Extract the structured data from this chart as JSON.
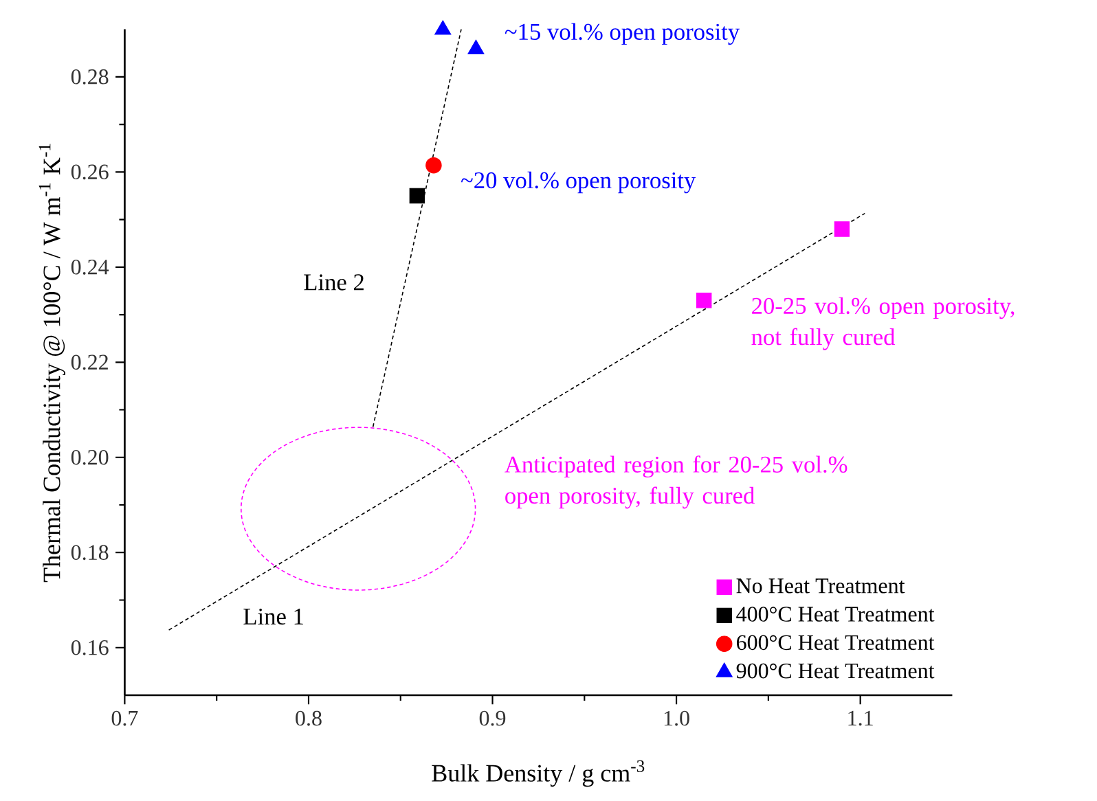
{
  "chart_data": {
    "type": "scatter",
    "xlabel": "Bulk Density / g cm$^{-3}$",
    "ylabel": "Thermal Conductivity @ 100°C / W m$^{-1}$ K$^{-1}$",
    "xlim": [
      0.7,
      1.15
    ],
    "ylim": [
      0.15,
      0.29
    ],
    "xticks": [
      0.7,
      0.8,
      0.9,
      {
        "value": 1.0,
        "label": "1.0"
      },
      1.1
    ],
    "yticks": [
      0.16,
      0.18,
      {
        "value": 0.2,
        "label": "0.20"
      },
      0.22,
      0.24,
      0.26,
      0.28
    ],
    "grid": false,
    "legend": "bottom right",
    "series": [
      {
        "name": "No Heat Treatment",
        "color": "#ff00ff",
        "marker": "square",
        "x": [
          1.09,
          1.015
        ],
        "values": [
          0.248,
          0.233
        ]
      },
      {
        "name": "400°C Heat Treatment",
        "color": "#000000",
        "marker": "square",
        "x": [
          0.859
        ],
        "values": [
          0.255
        ]
      },
      {
        "name": "600°C Heat Treatment",
        "color": "#ff0000",
        "marker": "circle",
        "x": [
          0.868
        ],
        "values": [
          0.2614
        ]
      },
      {
        "name": "900°C Heat Treatment",
        "color": "#0000ff",
        "marker": "triangle",
        "x": [
          0.873,
          0.891
        ],
        "values": [
          0.2899,
          0.2858
        ]
      },
      {
        "type": "line",
        "color": "#000000",
        "marker": "none",
        "line_style": "dashed",
        "x": [
          0.724,
          1.1025
        ],
        "values": [
          0.1637,
          0.2513
        ]
      },
      {
        "type": "line",
        "color": "#000000",
        "marker": "none",
        "line_style": "dashed",
        "x": [
          0.835,
          0.883
        ],
        "values": [
          0.2064,
          0.29
        ]
      }
    ],
    "annotations": [
      "~15 vol.% open porosity",
      "~20 vol.% open porosity",
      "20-25 vol.% open porosity, not fully cured",
      "Anticipated region for 20-25 vol.% open porosity, fully cured",
      "Line 2",
      "Line 1"
    ]
  }
}
